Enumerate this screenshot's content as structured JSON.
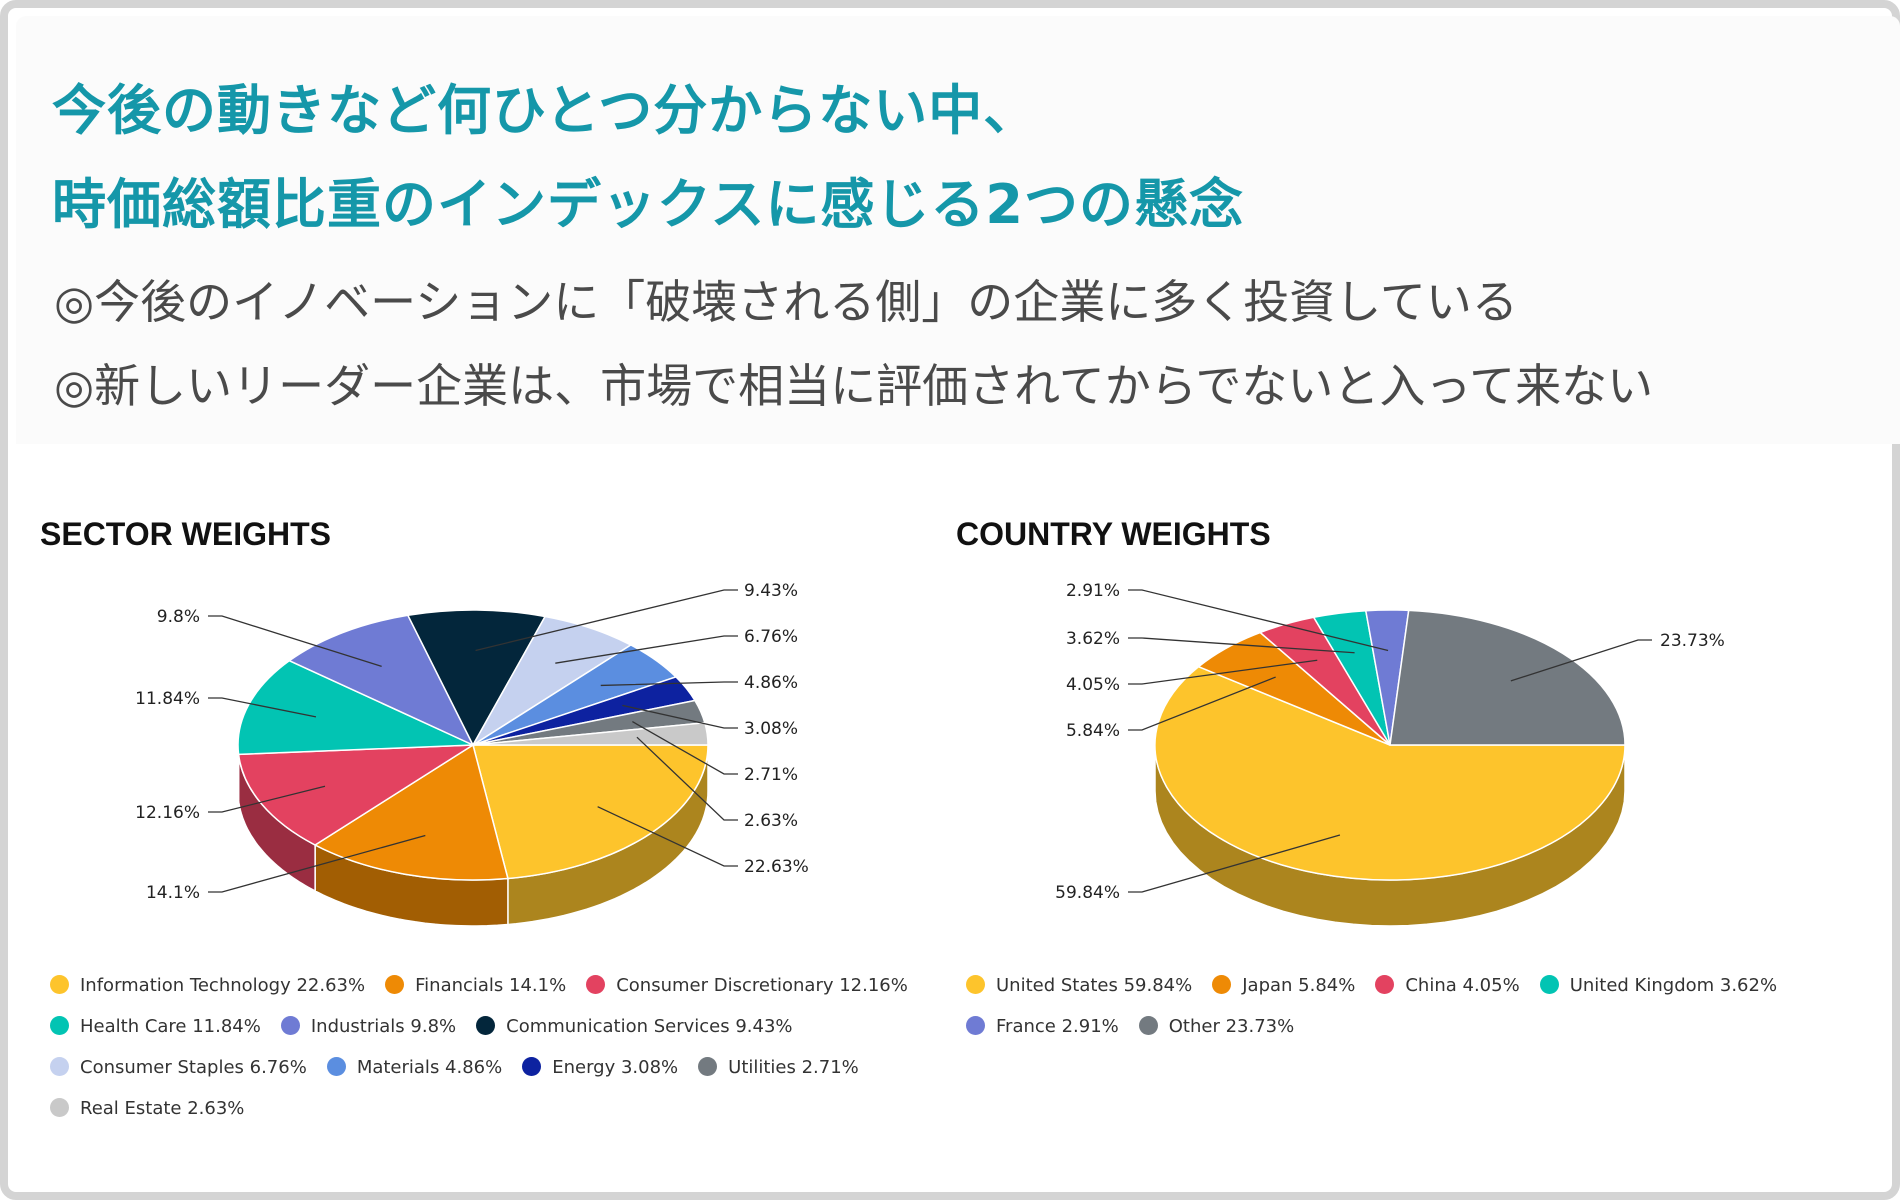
{
  "header": {
    "title_line1": "今後の動きなど何ひとつ分からない中、",
    "title_line2": "時価総額比重のインデックスに感じる2つの懸念",
    "bullet1": "◎今後のイノベーションに「破壊される側」の企業に多く投資している",
    "bullet2": "◎新しいリーダー企業は、市場で相当に評価されてからでないと入って来ない"
  },
  "colors": {
    "title": "#1597a9",
    "body_text": "#4a4a4a",
    "frame": "#d4d4d4"
  },
  "chart_data": [
    {
      "type": "pie",
      "title": "SECTOR WEIGHTS",
      "style": "3d",
      "slices": [
        {
          "label": "Information Technology",
          "value": 22.63,
          "value_label": "22.63%",
          "legend": "Information Technology 22.63%",
          "color": "#fdc42c"
        },
        {
          "label": "Financials",
          "value": 14.1,
          "value_label": "14.1%",
          "legend": "Financials 14.1%",
          "color": "#ee8a05"
        },
        {
          "label": "Consumer Discretionary",
          "value": 12.16,
          "value_label": "12.16%",
          "legend": "Consumer Discretionary 12.16%",
          "color": "#e34260"
        },
        {
          "label": "Health Care",
          "value": 11.84,
          "value_label": "11.84%",
          "legend": "Health Care 11.84%",
          "color": "#02c4b3"
        },
        {
          "label": "Industrials",
          "value": 9.8,
          "value_label": "9.8%",
          "legend": "Industrials 9.8%",
          "color": "#6f7bd4"
        },
        {
          "label": "Communication Services",
          "value": 9.43,
          "value_label": "9.43%",
          "legend": "Communication Services 9.43%",
          "color": "#03263b"
        },
        {
          "label": "Consumer Staples",
          "value": 6.76,
          "value_label": "6.76%",
          "legend": "Consumer Staples 6.76%",
          "color": "#c5d1ef"
        },
        {
          "label": "Materials",
          "value": 4.86,
          "value_label": "4.86%",
          "legend": "Materials 4.86%",
          "color": "#5b8ee0"
        },
        {
          "label": "Energy",
          "value": 3.08,
          "value_label": "3.08%",
          "legend": "Energy 3.08%",
          "color": "#0d22a0"
        },
        {
          "label": "Utilities",
          "value": 2.71,
          "value_label": "2.71%",
          "legend": "Utilities 2.71%",
          "color": "#737a80"
        },
        {
          "label": "Real Estate",
          "value": 2.63,
          "value_label": "2.63%",
          "legend": "Real Estate 2.63%",
          "color": "#c9c9c9"
        }
      ]
    },
    {
      "type": "pie",
      "title": "COUNTRY WEIGHTS",
      "style": "3d",
      "slices": [
        {
          "label": "United States",
          "value": 59.84,
          "value_label": "59.84%",
          "legend": "United States 59.84%",
          "color": "#fdc42c"
        },
        {
          "label": "Japan",
          "value": 5.84,
          "value_label": "5.84%",
          "legend": "Japan 5.84%",
          "color": "#ee8a05"
        },
        {
          "label": "China",
          "value": 4.05,
          "value_label": "4.05%",
          "legend": "China 4.05%",
          "color": "#e34260"
        },
        {
          "label": "United Kingdom",
          "value": 3.62,
          "value_label": "3.62%",
          "legend": "United Kingdom 3.62%",
          "color": "#02c4b3"
        },
        {
          "label": "France",
          "value": 2.91,
          "value_label": "2.91%",
          "legend": "France 2.91%",
          "color": "#6f7bd4"
        },
        {
          "label": "Other",
          "value": 23.73,
          "value_label": "23.73%",
          "legend": "Other 23.73%",
          "color": "#737a80"
        }
      ]
    }
  ]
}
